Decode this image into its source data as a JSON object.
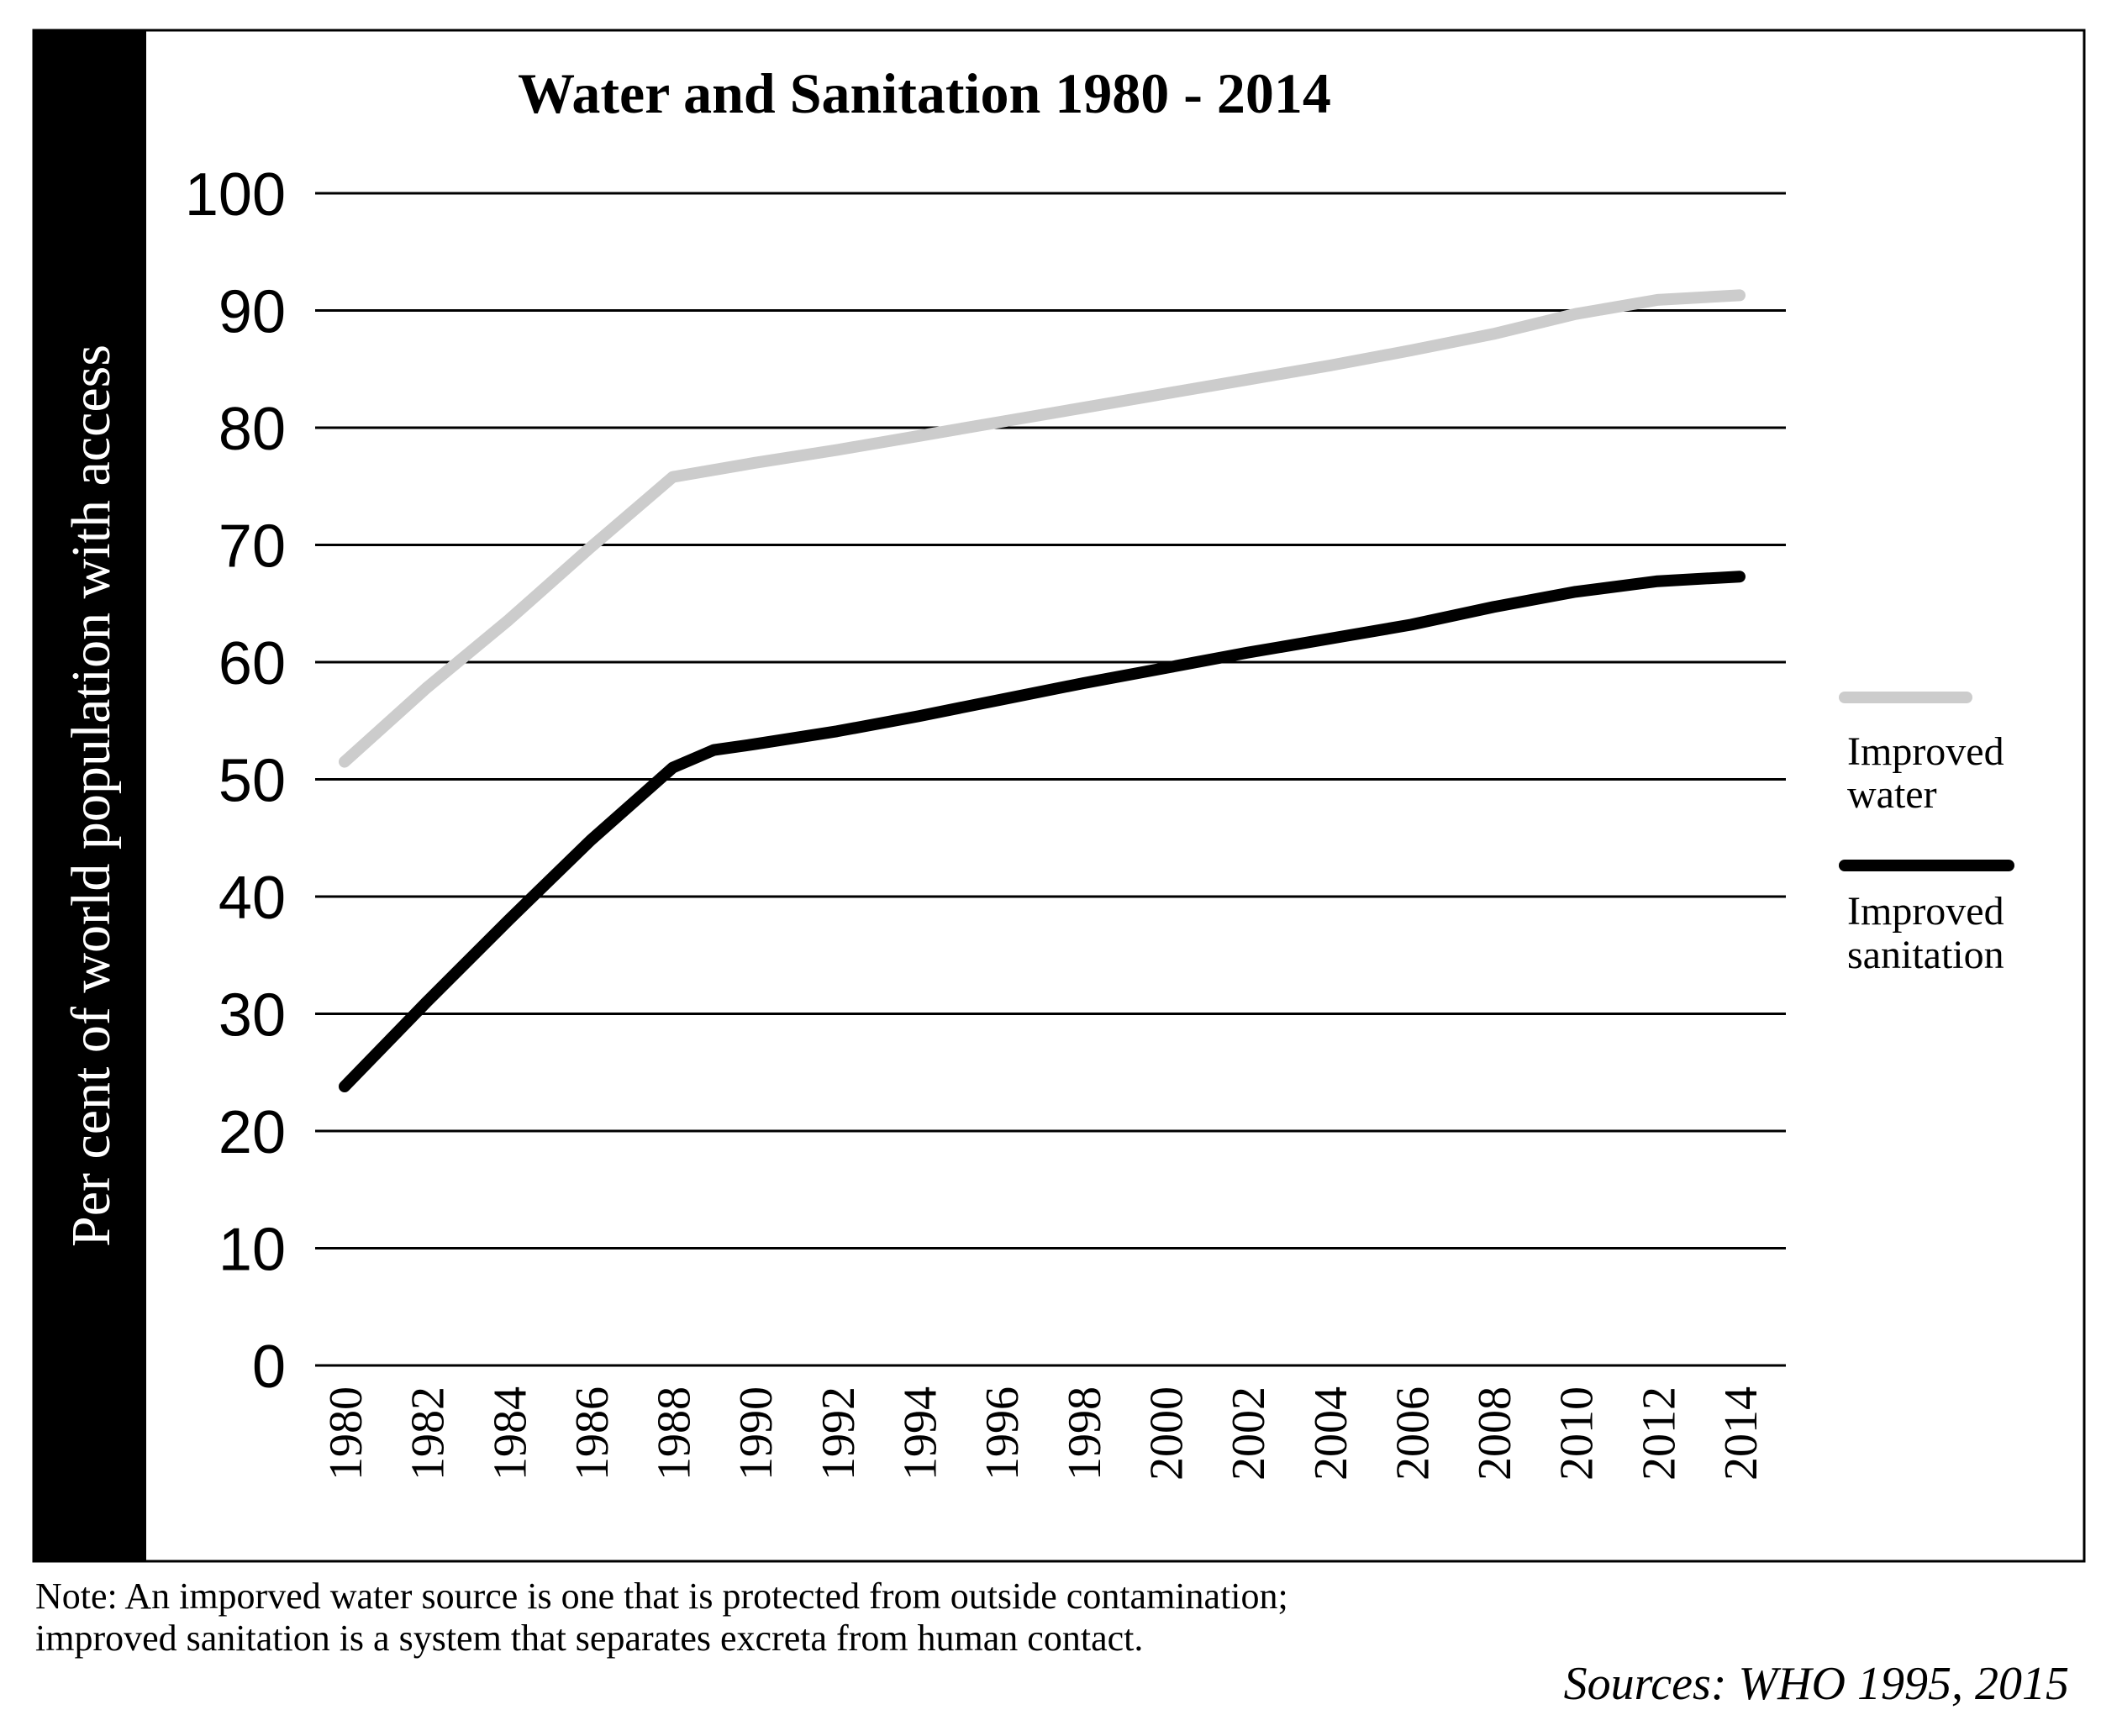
{
  "chart_data": {
    "type": "line",
    "title": "Water and Sanitation 1980 - 2014",
    "ylabel": "Per cent of world population with access",
    "xlabel": "",
    "ylim": [
      0,
      100
    ],
    "yticks": [
      "0",
      "10",
      "20",
      "30",
      "40",
      "50",
      "60",
      "70",
      "80",
      "90",
      "100"
    ],
    "xticks": [
      "1980",
      "1982",
      "1984",
      "1986",
      "1988",
      "1990",
      "1992",
      "1994",
      "1996",
      "1998",
      "2000",
      "2002",
      "2004",
      "2006",
      "2008",
      "2010",
      "2012",
      "2014"
    ],
    "grid": true,
    "legend_position": "right",
    "series": [
      {
        "name": "Improved water",
        "color": "#cccccc",
        "x": [
          1980,
          1982,
          1984,
          1986,
          1988,
          1990,
          1992,
          1994,
          1996,
          1998,
          2000,
          2002,
          2004,
          2006,
          2008,
          2010,
          2012,
          2014
        ],
        "values": [
          51.5,
          57.8,
          63.6,
          69.8,
          75.8,
          77.0,
          78.1,
          79.3,
          80.5,
          81.7,
          82.9,
          84.1,
          85.3,
          86.6,
          88.0,
          89.7,
          90.9,
          91.3
        ]
      },
      {
        "name": "Improved sanitation",
        "color": "#000000",
        "x": [
          1980,
          1982,
          1984,
          1986,
          1988,
          1989,
          1990,
          1992,
          1994,
          1996,
          1998,
          2000,
          2002,
          2004,
          2006,
          2008,
          2010,
          2012,
          2014
        ],
        "values": [
          23.8,
          31.0,
          38.0,
          44.8,
          51.0,
          52.5,
          53.0,
          54.1,
          55.4,
          56.8,
          58.2,
          59.5,
          60.8,
          62.0,
          63.2,
          64.7,
          66.0,
          66.9,
          67.3
        ]
      }
    ],
    "legend": [
      {
        "line1": "Improved",
        "line2": "water"
      },
      {
        "line1": "Improved",
        "line2": "sanitation"
      }
    ]
  },
  "note": {
    "line1": "Note: An imporved water source is one that is protected from outside contamination;",
    "line2": "improved sanitation is a system that separates excreta from human contact."
  },
  "sources": "Sources: WHO 1995, 2015"
}
